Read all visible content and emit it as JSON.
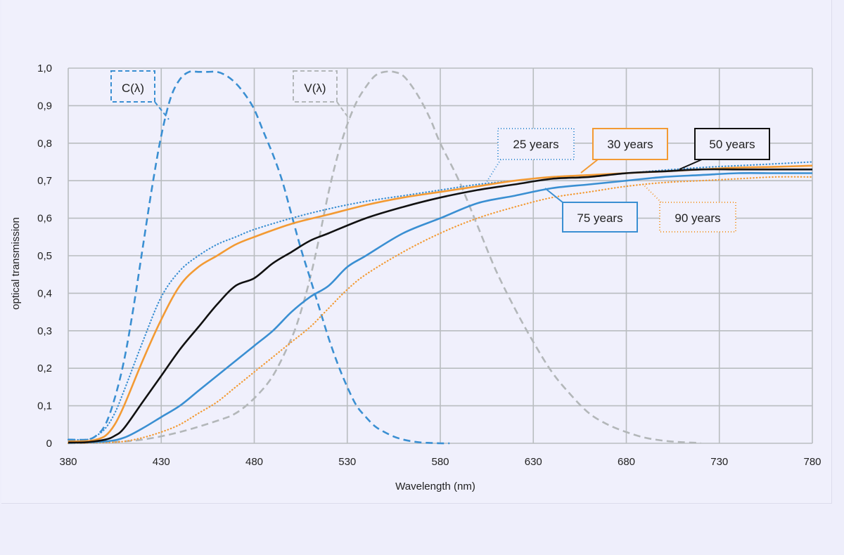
{
  "chart_data": {
    "type": "line",
    "xlabel": "Wavelength (nm)",
    "ylabel": "optical transmission",
    "xlim": [
      380,
      780
    ],
    "ylim": [
      0,
      1.0
    ],
    "x_ticks": [
      "380",
      "430",
      "480",
      "530",
      "580",
      "630",
      "680",
      "730",
      "780"
    ],
    "y_ticks": [
      "0",
      "0,1",
      "0,2",
      "0,3",
      "0,4",
      "0,5",
      "0,6",
      "0,7",
      "0,8",
      "0,9",
      "1,0"
    ],
    "grid": true,
    "series": [
      {
        "name": "C(λ)",
        "color": "#3a8fd2",
        "style": "dashed",
        "x": [
          380,
          390,
          395,
          400,
          405,
          410,
          415,
          420,
          425,
          430,
          435,
          440,
          445,
          450,
          455,
          460,
          465,
          470,
          475,
          480,
          485,
          490,
          495,
          500,
          505,
          510,
          515,
          520,
          525,
          530,
          535,
          540,
          545,
          550,
          555,
          560,
          565,
          570,
          575,
          580,
          585
        ],
        "y": [
          0.01,
          0.01,
          0.02,
          0.05,
          0.12,
          0.22,
          0.36,
          0.52,
          0.68,
          0.82,
          0.92,
          0.97,
          0.99,
          0.99,
          0.99,
          0.99,
          0.98,
          0.96,
          0.93,
          0.89,
          0.83,
          0.77,
          0.7,
          0.61,
          0.52,
          0.44,
          0.36,
          0.28,
          0.21,
          0.15,
          0.1,
          0.07,
          0.045,
          0.03,
          0.018,
          0.01,
          0.005,
          0.002,
          0.001,
          0,
          0
        ]
      },
      {
        "name": "V(λ)",
        "color": "#b3b7b9",
        "style": "dashed",
        "x": [
          380,
          400,
          420,
          440,
          460,
          470,
          480,
          490,
          500,
          505,
          510,
          515,
          520,
          525,
          530,
          535,
          540,
          545,
          550,
          555,
          560,
          565,
          570,
          575,
          580,
          590,
          600,
          610,
          620,
          630,
          640,
          650,
          660,
          670,
          680,
          690,
          700,
          710,
          720
        ],
        "y": [
          0,
          0.002,
          0.01,
          0.03,
          0.06,
          0.08,
          0.12,
          0.18,
          0.28,
          0.35,
          0.44,
          0.55,
          0.67,
          0.77,
          0.85,
          0.91,
          0.95,
          0.98,
          0.99,
          0.99,
          0.98,
          0.95,
          0.91,
          0.86,
          0.8,
          0.7,
          0.58,
          0.46,
          0.36,
          0.27,
          0.19,
          0.13,
          0.08,
          0.05,
          0.03,
          0.015,
          0.007,
          0.003,
          0.001
        ]
      },
      {
        "name": "25 years",
        "color": "#3a8fd2",
        "style": "dotted",
        "x": [
          380,
          390,
          395,
          400,
          405,
          410,
          420,
          430,
          440,
          450,
          460,
          470,
          480,
          500,
          520,
          540,
          560,
          580,
          600,
          620,
          640,
          660,
          680,
          700,
          720,
          740,
          760,
          780
        ],
        "y": [
          0.01,
          0.01,
          0.02,
          0.04,
          0.08,
          0.14,
          0.27,
          0.39,
          0.46,
          0.5,
          0.53,
          0.55,
          0.57,
          0.6,
          0.625,
          0.645,
          0.66,
          0.675,
          0.69,
          0.7,
          0.71,
          0.715,
          0.72,
          0.728,
          0.735,
          0.74,
          0.745,
          0.75
        ]
      },
      {
        "name": "30 years",
        "color": "#f39a33",
        "style": "solid",
        "x": [
          380,
          390,
          395,
          400,
          405,
          410,
          420,
          430,
          440,
          450,
          460,
          470,
          480,
          500,
          520,
          540,
          560,
          580,
          600,
          620,
          640,
          660,
          680,
          700,
          720,
          740,
          760,
          780
        ],
        "y": [
          0.005,
          0.006,
          0.01,
          0.02,
          0.05,
          0.1,
          0.22,
          0.33,
          0.42,
          0.47,
          0.5,
          0.53,
          0.55,
          0.585,
          0.61,
          0.635,
          0.655,
          0.67,
          0.685,
          0.7,
          0.71,
          0.715,
          0.72,
          0.725,
          0.73,
          0.735,
          0.737,
          0.74
        ]
      },
      {
        "name": "50 years",
        "color": "#111111",
        "style": "solid",
        "x": [
          380,
          390,
          400,
          405,
          410,
          420,
          430,
          440,
          450,
          460,
          470,
          480,
          490,
          500,
          510,
          520,
          540,
          560,
          580,
          600,
          620,
          640,
          660,
          680,
          700,
          720,
          740,
          760,
          780
        ],
        "y": [
          0.002,
          0.003,
          0.01,
          0.02,
          0.04,
          0.11,
          0.18,
          0.25,
          0.31,
          0.37,
          0.42,
          0.44,
          0.48,
          0.51,
          0.54,
          0.56,
          0.6,
          0.63,
          0.655,
          0.675,
          0.69,
          0.705,
          0.71,
          0.72,
          0.725,
          0.73,
          0.73,
          0.73,
          0.73
        ]
      },
      {
        "name": "75 years",
        "color": "#3a8fd2",
        "style": "solid",
        "x": [
          380,
          400,
          410,
          420,
          430,
          440,
          450,
          460,
          470,
          480,
          490,
          500,
          510,
          520,
          530,
          540,
          560,
          580,
          600,
          620,
          640,
          660,
          680,
          700,
          720,
          740,
          760,
          780
        ],
        "y": [
          0.001,
          0.005,
          0.015,
          0.04,
          0.07,
          0.1,
          0.14,
          0.18,
          0.22,
          0.26,
          0.3,
          0.35,
          0.39,
          0.42,
          0.47,
          0.5,
          0.56,
          0.6,
          0.64,
          0.66,
          0.68,
          0.69,
          0.7,
          0.71,
          0.715,
          0.72,
          0.72,
          0.72
        ]
      },
      {
        "name": "90 years",
        "color": "#f39a33",
        "style": "dotted",
        "x": [
          380,
          400,
          410,
          420,
          430,
          440,
          450,
          460,
          470,
          480,
          490,
          500,
          510,
          520,
          530,
          540,
          560,
          580,
          600,
          620,
          640,
          660,
          680,
          700,
          720,
          740,
          760,
          780
        ],
        "y": [
          0,
          0.002,
          0.005,
          0.015,
          0.03,
          0.05,
          0.08,
          0.11,
          0.15,
          0.19,
          0.23,
          0.27,
          0.31,
          0.36,
          0.41,
          0.45,
          0.51,
          0.56,
          0.6,
          0.63,
          0.655,
          0.67,
          0.685,
          0.695,
          0.7,
          0.705,
          0.71,
          0.71
        ]
      }
    ],
    "annotations": [
      {
        "text": "C(λ)",
        "series": "C(λ)"
      },
      {
        "text": "V(λ)",
        "series": "V(λ)"
      },
      {
        "text": "25 years",
        "series": "25 years"
      },
      {
        "text": "30 years",
        "series": "30 years"
      },
      {
        "text": "50 years",
        "series": "50 years"
      },
      {
        "text": "75 years",
        "series": "75 years"
      },
      {
        "text": "90 years",
        "series": "90 years"
      }
    ]
  }
}
